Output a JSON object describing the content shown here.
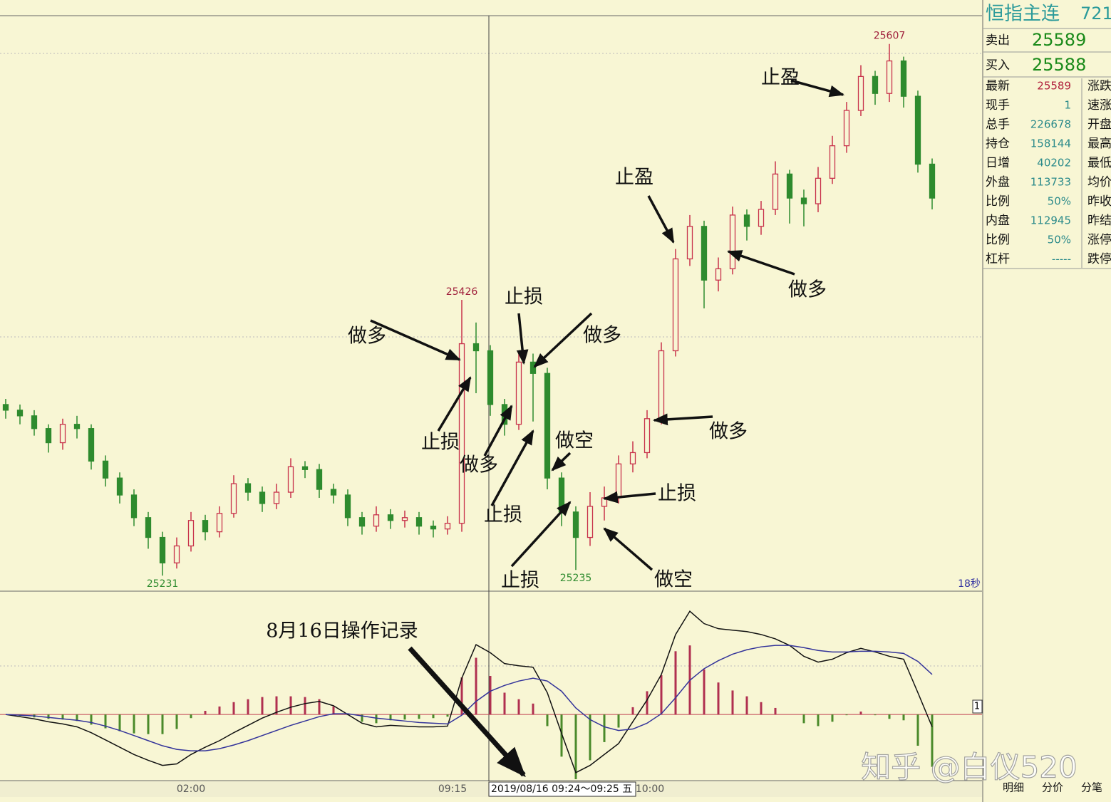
{
  "chart_data": {
    "type": "candlestick",
    "candles": {
      "open": [
        25352,
        25348,
        25344,
        25335,
        25325,
        25338,
        25335,
        25312,
        25300,
        25288,
        25272,
        25258,
        25240,
        25252,
        25270,
        25262,
        25275,
        25296,
        25290,
        25282,
        25290,
        25308,
        25306,
        25292,
        25288,
        25272,
        25266,
        25274,
        25270,
        25272,
        25266,
        25264,
        25268,
        25395,
        25390,
        25352,
        25338,
        25382,
        25374,
        25300,
        25276,
        25258,
        25280,
        25286,
        25310,
        25318,
        25342,
        25390,
        25455,
        25478,
        25440,
        25448,
        25486,
        25478,
        25490,
        25515,
        25498,
        25494,
        25512,
        25535,
        25560,
        25584,
        25572,
        25595,
        25570,
        25522
      ],
      "high": [
        25356,
        25352,
        25348,
        25338,
        25342,
        25344,
        25338,
        25316,
        25304,
        25292,
        25276,
        25262,
        25258,
        25276,
        25274,
        25280,
        25302,
        25300,
        25294,
        25296,
        25314,
        25312,
        25310,
        25296,
        25292,
        25276,
        25280,
        25278,
        25277,
        25276,
        25270,
        25273,
        25426,
        25410,
        25394,
        25356,
        25390,
        25388,
        25378,
        25304,
        25280,
        25290,
        25294,
        25316,
        25326,
        25348,
        25396,
        25462,
        25486,
        25482,
        25456,
        25492,
        25490,
        25496,
        25524,
        25518,
        25504,
        25520,
        25542,
        25566,
        25592,
        25588,
        25607,
        25598,
        25574,
        25526
      ],
      "low": [
        25342,
        25338,
        25330,
        25318,
        25320,
        25328,
        25306,
        25294,
        25282,
        25266,
        25250,
        25231,
        25236,
        25248,
        25256,
        25258,
        25272,
        25284,
        25276,
        25278,
        25286,
        25300,
        25286,
        25282,
        25266,
        25260,
        25262,
        25264,
        25265,
        25260,
        25258,
        25260,
        25262,
        25360,
        25344,
        25330,
        25334,
        25340,
        25292,
        25266,
        25235,
        25252,
        25270,
        25282,
        25304,
        25314,
        25338,
        25386,
        25450,
        25420,
        25432,
        25444,
        25468,
        25472,
        25486,
        25480,
        25478,
        25488,
        25508,
        25530,
        25556,
        25564,
        25566,
        25562,
        25516,
        25490
      ],
      "close": [
        25348,
        25344,
        25335,
        25325,
        25338,
        25335,
        25312,
        25300,
        25288,
        25272,
        25258,
        25240,
        25252,
        25270,
        25262,
        25275,
        25296,
        25290,
        25282,
        25290,
        25308,
        25306,
        25292,
        25288,
        25272,
        25266,
        25274,
        25270,
        25272,
        25266,
        25264,
        25268,
        25395,
        25390,
        25352,
        25338,
        25382,
        25374,
        25300,
        25276,
        25258,
        25280,
        25286,
        25310,
        25318,
        25342,
        25390,
        25455,
        25478,
        25440,
        25448,
        25486,
        25478,
        25490,
        25515,
        25498,
        25494,
        25512,
        25535,
        25560,
        25584,
        25572,
        25595,
        25570,
        25522,
        25498
      ]
    },
    "up_color": "#c8324b",
    "down_color": "#2e8b2e",
    "ylim": [
      25220,
      25627
    ],
    "time_labels": [
      "02:00",
      "09:15",
      "10:00"
    ],
    "crosshair_label": "2019/08/16 09:24～09:25 五",
    "refresh_label": "18秒",
    "macd": {
      "dif": [
        0,
        -0.3,
        -0.6,
        -1.0,
        -1.3,
        -1.7,
        -2.5,
        -3.5,
        -4.5,
        -5.5,
        -6.3,
        -7.0,
        -6.8,
        -5.5,
        -4.5,
        -3.6,
        -2.5,
        -1.5,
        -0.5,
        0.3,
        1.0,
        1.5,
        1.8,
        1.2,
        0,
        -1.2,
        -1.7,
        -1.5,
        -1.6,
        -1.7,
        -1.7,
        -1.6,
        5.0,
        9.6,
        8.5,
        7.0,
        6.7,
        6.5,
        3.0,
        -2.6,
        -8.0,
        -7.0,
        -5.5,
        -4.0,
        -1.0,
        2.0,
        5.5,
        11.0,
        14.2,
        12.5,
        11.8,
        11.6,
        11.4,
        11.0,
        10.4,
        9.5,
        8.0,
        7.2,
        7.6,
        8.5,
        9.1,
        8.6,
        8.0,
        7.6,
        3.0,
        -1.7
      ],
      "dea": [
        0,
        -0.1,
        -0.2,
        -0.4,
        -0.6,
        -0.8,
        -1.1,
        -1.6,
        -2.2,
        -2.9,
        -3.6,
        -4.3,
        -4.8,
        -5.0,
        -5.0,
        -4.7,
        -4.2,
        -3.6,
        -2.9,
        -2.2,
        -1.5,
        -0.9,
        -0.3,
        0.1,
        0.1,
        -0.2,
        -0.5,
        -0.7,
        -0.9,
        -1.1,
        -1.2,
        -1.3,
        -0.1,
        1.8,
        3.2,
        4.0,
        4.6,
        5.0,
        4.6,
        3.2,
        0.9,
        -0.7,
        -1.7,
        -2.2,
        -2.0,
        -1.2,
        0.1,
        2.3,
        4.7,
        6.3,
        7.4,
        8.3,
        8.9,
        9.3,
        9.5,
        9.5,
        9.2,
        8.8,
        8.6,
        8.6,
        8.7,
        8.7,
        8.6,
        8.4,
        7.3,
        5.5
      ],
      "hist": [
        0,
        -0.2,
        -0.4,
        -0.6,
        -0.7,
        -0.9,
        -1.4,
        -1.9,
        -2.3,
        -2.6,
        -2.7,
        -2.7,
        -2.0,
        -0.5,
        0.5,
        1.1,
        1.7,
        2.1,
        2.4,
        2.5,
        2.5,
        2.4,
        2.1,
        1.1,
        -0.1,
        -1.0,
        -1.2,
        -0.8,
        -0.7,
        -0.6,
        -0.5,
        -0.3,
        5.1,
        7.8,
        5.3,
        3.0,
        2.1,
        1.5,
        -1.6,
        -5.8,
        -8.9,
        -6.3,
        -3.8,
        -1.8,
        1.0,
        3.2,
        5.4,
        8.7,
        9.5,
        6.2,
        4.4,
        3.3,
        2.5,
        1.7,
        0.9,
        0,
        -1.2,
        -1.6,
        -1.0,
        -0.1,
        0.4,
        -0.1,
        -0.6,
        -0.8,
        -4.3,
        -7.2
      ],
      "ylim": [
        -9,
        15
      ],
      "dif_color": "#111111",
      "dea_color": "#33339a",
      "hist_up_color": "#b03050",
      "hist_down_color": "#4a8a2a",
      "scale_label": "1"
    },
    "annotations": [
      "做多",
      "止损",
      "止损",
      "做多",
      "做多",
      "做空",
      "止损",
      "做多",
      "止损",
      "做空",
      "止损",
      "止盈",
      "做多",
      "止盈",
      "8月16日操作记录"
    ]
  },
  "quote_panel": {
    "title": "恒指主连",
    "code": "721",
    "sell_label": "卖出",
    "sell": "25589",
    "buy_label": "买入",
    "buy": "25588",
    "rows": [
      [
        "最新",
        "25589",
        "涨跌"
      ],
      [
        "现手",
        "1",
        "速涨"
      ],
      [
        "总手",
        "226678",
        "开盘"
      ],
      [
        "持仓",
        "158144",
        "最高"
      ],
      [
        "日增",
        "40202",
        "最低"
      ],
      [
        "外盘",
        "113733",
        "均价"
      ],
      [
        "比例",
        "50%",
        "昨收"
      ],
      [
        "内盘",
        "112945",
        "昨结"
      ],
      [
        "比例",
        "50%",
        "涨停"
      ],
      [
        "杠杆",
        "-----",
        "跌停"
      ]
    ]
  },
  "tabs": [
    "明细",
    "分价",
    "分笔"
  ],
  "watermark": "知乎 @白仪520"
}
